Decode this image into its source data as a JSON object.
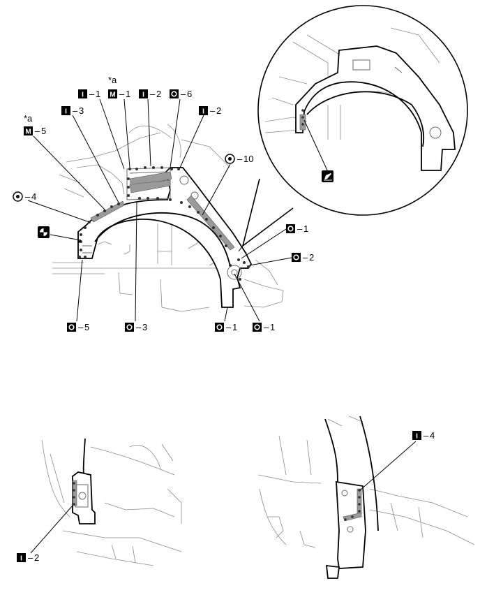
{
  "callouts": {
    "i1": {
      "code": "I",
      "number": "1"
    },
    "m1_note": "*a",
    "m1": {
      "code": "M",
      "number": "1"
    },
    "i2_top": {
      "code": "I",
      "number": "2"
    },
    "o6": {
      "code": "O",
      "number": "6"
    },
    "i2_right": {
      "code": "I",
      "number": "2"
    },
    "i3": {
      "code": "I",
      "number": "3"
    },
    "m5_note": "*a",
    "m5": {
      "code": "M",
      "number": "5"
    },
    "o10": {
      "code": "O",
      "number": "10"
    },
    "o4": {
      "code": "O",
      "number": "4"
    },
    "o1_right": {
      "code": "O",
      "number": "1"
    },
    "o2": {
      "code": "O",
      "number": "2"
    },
    "o5": {
      "code": "O",
      "number": "5"
    },
    "o3": {
      "code": "O",
      "number": "3"
    },
    "o1_bottom_a": {
      "code": "O",
      "number": "1"
    },
    "o1_bottom_b": {
      "code": "O",
      "number": "1"
    },
    "i2_bottom": {
      "code": "I",
      "number": "2"
    },
    "i4": {
      "code": "I",
      "number": "4"
    }
  },
  "symbols": {
    "remove_left": "circle-split-icon",
    "remove_right": "circle-split-icon",
    "sealer": "pen-icon",
    "colors": {
      "line": "#000000",
      "sealer": "#9a9a9a",
      "weld": "#333333"
    }
  }
}
